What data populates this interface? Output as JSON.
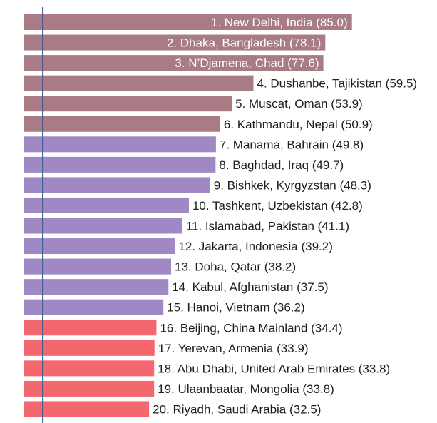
{
  "chart_data": {
    "type": "bar",
    "orientation": "horizontal",
    "categories": [
      "1. New Delhi, India",
      "2. Dhaka, Bangladesh",
      "3. N’Djamena, Chad",
      "4. Dushanbe, Tajikistan",
      "5. Muscat, Oman",
      "6. Kathmandu, Nepal",
      "7. Manama, Bahrain",
      "8. Baghdad, Iraq",
      "9. Bishkek, Kyrgyzstan",
      "10. Tashkent, Uzbekistan",
      "11. Islamabad, Pakistan",
      "12. Jakarta, Indonesia",
      "13. Doha, Qatar",
      "14. Kabul, Afghanistan",
      "15. Hanoi, Vietnam",
      "16. Beijing, China Mainland",
      "17. Yerevan, Armenia",
      "18. Abu Dhabi, United Arab Emirates",
      "19. Ulaanbaatar, Mongolia",
      "20. Riyadh, Saudi Arabia"
    ],
    "values": [
      85.0,
      78.1,
      77.6,
      59.5,
      53.9,
      50.9,
      49.8,
      49.7,
      48.3,
      42.8,
      41.1,
      39.2,
      38.2,
      37.5,
      36.2,
      34.4,
      33.9,
      33.8,
      33.8,
      32.5
    ],
    "labels": [
      "1. New Delhi, India (85.0)",
      "2. Dhaka, Bangladesh (78.1)",
      "3. N’Djamena, Chad  (77.6)",
      "4. Dushanbe, Tajikistan (59.5)",
      "5. Muscat, Oman (53.9)",
      "6. Kathmandu, Nepal (50.9)",
      "7. Manama, Bahrain (49.8)",
      "8. Baghdad, Iraq (49.7)",
      "9. Bishkek, Kyrgyzstan (48.3)",
      "10. Tashkent, Uzbekistan (42.8)",
      "11. Islamabad, Pakistan (41.1)",
      "12. Jakarta, Indonesia (39.2)",
      "13. Doha, Qatar (38.2)",
      "14. Kabul, Afghanistan (37.5)",
      "15. Hanoi, Vietnam (36.2)",
      "16. Beijing, China Mainland (34.4)",
      "17. Yerevan, Armenia (33.9)",
      "18. Abu Dhabi, United Arab Emirates (33.8)",
      "19. Ulaanbaatar, Mongolia (33.8)",
      "20. Riyadh, Saudi Arabia (32.5)"
    ],
    "label_inside": [
      true,
      true,
      true,
      false,
      false,
      false,
      false,
      false,
      false,
      false,
      false,
      false,
      false,
      false,
      false,
      false,
      false,
      false,
      false,
      false
    ],
    "groups": [
      0,
      0,
      0,
      0,
      0,
      0,
      1,
      1,
      1,
      1,
      1,
      1,
      1,
      1,
      1,
      2,
      2,
      2,
      2,
      2
    ],
    "group_colors": [
      "#a87b85",
      "#a088c4",
      "#f2686e"
    ],
    "reference_line": {
      "value": 5,
      "color": "#3a5a92"
    },
    "xlim": [
      0,
      85
    ],
    "title": "",
    "xlabel": "",
    "ylabel": "",
    "grid": false,
    "legend": "none"
  }
}
